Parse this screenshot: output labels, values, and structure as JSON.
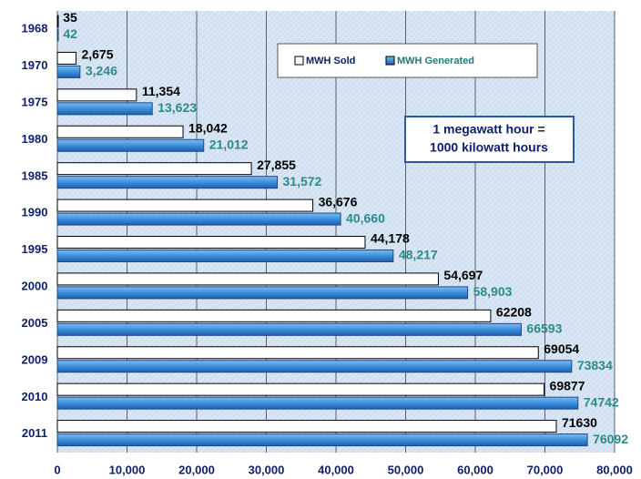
{
  "chart_data": {
    "type": "hbar",
    "categories": [
      "1968",
      "1970",
      "1975",
      "1980",
      "1985",
      "1990",
      "1995",
      "2000",
      "2005",
      "2009",
      "2010",
      "2011"
    ],
    "series": [
      {
        "name": "MWH Sold",
        "color": "#ffffff",
        "values": [
          35,
          2675,
          11354,
          18042,
          27855,
          36676,
          44178,
          54697,
          62208,
          69054,
          69877,
          71630
        ],
        "value_labels": [
          "35",
          "2,675",
          "11,354",
          "18,042",
          "27,855",
          "36,676",
          "44,178",
          "54,697",
          "62208",
          "69054",
          "69877",
          "71630"
        ]
      },
      {
        "name": "MWH Generated",
        "color": "#3d8fdc",
        "values": [
          42,
          3246,
          13623,
          21012,
          31572,
          40660,
          48217,
          58903,
          66593,
          73834,
          74742,
          76092
        ],
        "value_labels": [
          "42",
          "3,246",
          "13,623",
          "21,012",
          "31,572",
          "40,660",
          "48,217",
          "58,903",
          "66593",
          "73834",
          "74742",
          "76092"
        ]
      }
    ],
    "xlim": [
      0,
      80000
    ],
    "xticks": [
      0,
      {
        "value": 10000,
        "label": "10,000"
      },
      {
        "value": 20000,
        "label": "20,000"
      },
      {
        "value": 30000,
        "label": "30,000"
      },
      {
        "value": 40000,
        "label": "40,000"
      },
      {
        "value": 50000,
        "label": "50,000"
      },
      {
        "value": 60000,
        "label": "60,000"
      },
      {
        "value": 70000,
        "label": "70,000"
      },
      {
        "value": 80000,
        "label": "80,000"
      }
    ],
    "grid": true,
    "annotation": [
      "1 megawatt hour =",
      "1000 kilowatt hours"
    ]
  }
}
